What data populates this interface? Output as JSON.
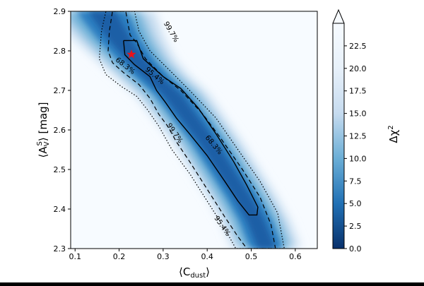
{
  "chart_data": {
    "type": "heatmap",
    "title": "",
    "xlabel": "⟨C",
    "xlabel_sub": "dust",
    "xlabel_close": "⟩",
    "ylabel": "⟨A",
    "ylabel_sub": "V",
    "ylabel_sup": "S",
    "ylabel_rest": "⟩ [mag]",
    "xlim": [
      0.09,
      0.65
    ],
    "ylim": [
      2.3,
      2.9
    ],
    "xticks": [
      0.1,
      0.2,
      0.3,
      0.4,
      0.5,
      0.6
    ],
    "xtick_labels": [
      "0.1",
      "0.2",
      "0.3",
      "0.4",
      "0.5",
      "0.6"
    ],
    "yticks": [
      2.3,
      2.4,
      2.5,
      2.6,
      2.7,
      2.8,
      2.9
    ],
    "ytick_labels": [
      "2.3",
      "2.4",
      "2.5",
      "2.6",
      "2.7",
      "2.8",
      "2.9"
    ],
    "colorbar": {
      "label": "Δχ",
      "label_sup": "2",
      "range": [
        0,
        25
      ],
      "extend": "max",
      "ticks": [
        0,
        2.5,
        5,
        7.5,
        10,
        12.5,
        15,
        17.5,
        20,
        22.5
      ],
      "tick_labels": [
        "0.0",
        "2.5",
        "5.0",
        "7.5",
        "10.0",
        "12.5",
        "15.0",
        "17.5",
        "20.0",
        "22.5"
      ],
      "colormap": "Blues_r"
    },
    "contours": [
      {
        "level": "68.3%",
        "style": "solid",
        "points": [
          [
            0.21,
            2.826
          ],
          [
            0.24,
            2.826
          ],
          [
            0.255,
            2.78
          ],
          [
            0.3,
            2.735
          ],
          [
            0.34,
            2.705
          ],
          [
            0.38,
            2.655
          ],
          [
            0.42,
            2.59
          ],
          [
            0.46,
            2.52
          ],
          [
            0.49,
            2.46
          ],
          [
            0.515,
            2.405
          ],
          [
            0.513,
            2.385
          ],
          [
            0.495,
            2.385
          ],
          [
            0.47,
            2.42
          ],
          [
            0.44,
            2.47
          ],
          [
            0.4,
            2.535
          ],
          [
            0.36,
            2.59
          ],
          [
            0.33,
            2.63
          ],
          [
            0.305,
            2.67
          ],
          [
            0.285,
            2.7
          ],
          [
            0.27,
            2.735
          ],
          [
            0.235,
            2.765
          ],
          [
            0.213,
            2.79
          ],
          [
            0.21,
            2.826
          ]
        ]
      },
      {
        "level": "95.4%",
        "style": "dashed",
        "points": [
          [
            0.185,
            2.9
          ],
          [
            0.215,
            2.9
          ],
          [
            0.225,
            2.84
          ],
          [
            0.24,
            2.82
          ],
          [
            0.26,
            2.78
          ],
          [
            0.3,
            2.735
          ],
          [
            0.34,
            2.7
          ],
          [
            0.39,
            2.64
          ],
          [
            0.43,
            2.58
          ],
          [
            0.48,
            2.5
          ],
          [
            0.52,
            2.43
          ],
          [
            0.545,
            2.36
          ],
          [
            0.555,
            2.3
          ],
          [
            0.49,
            2.3
          ],
          [
            0.47,
            2.33
          ],
          [
            0.44,
            2.38
          ],
          [
            0.4,
            2.45
          ],
          [
            0.36,
            2.52
          ],
          [
            0.33,
            2.57
          ],
          [
            0.31,
            2.61
          ],
          [
            0.29,
            2.64
          ],
          [
            0.27,
            2.68
          ],
          [
            0.245,
            2.715
          ],
          [
            0.21,
            2.745
          ],
          [
            0.185,
            2.77
          ],
          [
            0.175,
            2.8
          ],
          [
            0.178,
            2.85
          ],
          [
            0.185,
            2.9
          ]
        ]
      },
      {
        "level": "99.7%",
        "style": "dotted",
        "points": [
          [
            0.17,
            2.9
          ],
          [
            0.235,
            2.9
          ],
          [
            0.245,
            2.85
          ],
          [
            0.27,
            2.8
          ],
          [
            0.32,
            2.745
          ],
          [
            0.36,
            2.7
          ],
          [
            0.42,
            2.63
          ],
          [
            0.47,
            2.55
          ],
          [
            0.52,
            2.47
          ],
          [
            0.56,
            2.39
          ],
          [
            0.575,
            2.3
          ],
          [
            0.465,
            2.3
          ],
          [
            0.44,
            2.35
          ],
          [
            0.4,
            2.42
          ],
          [
            0.36,
            2.49
          ],
          [
            0.32,
            2.55
          ],
          [
            0.29,
            2.61
          ],
          [
            0.265,
            2.65
          ],
          [
            0.24,
            2.685
          ],
          [
            0.205,
            2.71
          ],
          [
            0.17,
            2.74
          ],
          [
            0.155,
            2.78
          ],
          [
            0.16,
            2.85
          ],
          [
            0.17,
            2.9
          ]
        ]
      }
    ],
    "contour_labels": [
      {
        "text": "68.3%",
        "x": 0.214,
        "y": 2.762,
        "angle": 38
      },
      {
        "text": "68.3%",
        "x": 0.415,
        "y": 2.562,
        "angle": 50
      },
      {
        "text": "95.4%",
        "x": 0.281,
        "y": 2.737,
        "angle": 40
      },
      {
        "text": "95.4%",
        "x": 0.434,
        "y": 2.357,
        "angle": 55
      },
      {
        "text": "99.7%",
        "x": 0.318,
        "y": 2.848,
        "angle": 60
      },
      {
        "text": "99.7%",
        "x": 0.326,
        "y": 2.592,
        "angle": 55
      }
    ],
    "marker": {
      "shape": "star",
      "color": "#e8131b",
      "x": 0.228,
      "y": 2.791
    },
    "ridge": [
      [
        0.16,
        2.9
      ],
      [
        0.2,
        2.83
      ],
      [
        0.24,
        2.775
      ],
      [
        0.28,
        2.73
      ],
      [
        0.32,
        2.69
      ],
      [
        0.36,
        2.63
      ],
      [
        0.4,
        2.57
      ],
      [
        0.44,
        2.5
      ],
      [
        0.48,
        2.43
      ],
      [
        0.51,
        2.37
      ],
      [
        0.535,
        2.3
      ]
    ],
    "band_width_x": [
      0.05,
      0.042,
      0.036,
      0.034,
      0.034,
      0.033,
      0.032,
      0.032,
      0.032,
      0.032,
      0.032
    ]
  }
}
